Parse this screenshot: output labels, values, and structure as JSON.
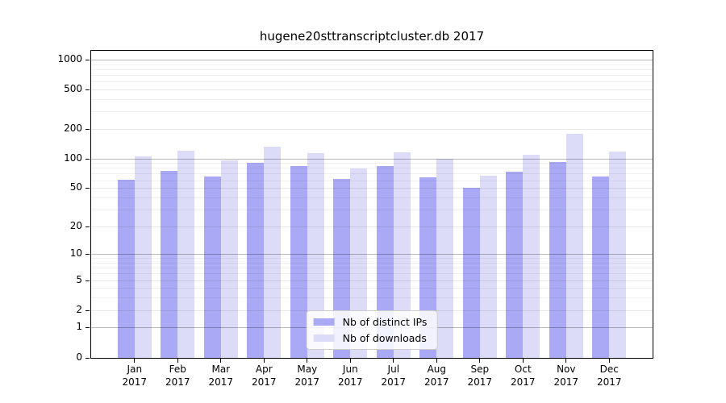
{
  "chart_data": {
    "type": "bar",
    "title": "hugene20sttranscriptcluster.db 2017",
    "categories": [
      "Jan",
      "Feb",
      "Mar",
      "Apr",
      "May",
      "Jun",
      "Jul",
      "Aug",
      "Sep",
      "Oct",
      "Nov",
      "Dec"
    ],
    "year_label": "2017",
    "series": [
      {
        "name": "Nb of distinct IPs",
        "color": "#a9a9f5",
        "values": [
          61,
          75,
          65,
          90,
          83,
          62,
          84,
          64,
          50,
          74,
          92,
          66
        ]
      },
      {
        "name": "Nb of downloads",
        "color": "#dcdcf8",
        "values": [
          105,
          120,
          95,
          131,
          114,
          79,
          116,
          100,
          67,
          110,
          178,
          118
        ]
      }
    ],
    "xlabel": "",
    "ylabel": "",
    "ylim": [
      0,
      1000
    ],
    "y_scale": "log1p",
    "y_ticks": [
      0,
      1,
      2,
      5,
      10,
      20,
      50,
      100,
      200,
      500,
      1000
    ],
    "grid": true,
    "legend_position": "lower center",
    "colors": {
      "frame": "#000000",
      "grid_major": "rgba(0,0,0,0.27)",
      "grid_labeled": "rgba(0,0,0,0.09)",
      "grid_minor": "rgba(0,0,0,0.055)"
    }
  }
}
